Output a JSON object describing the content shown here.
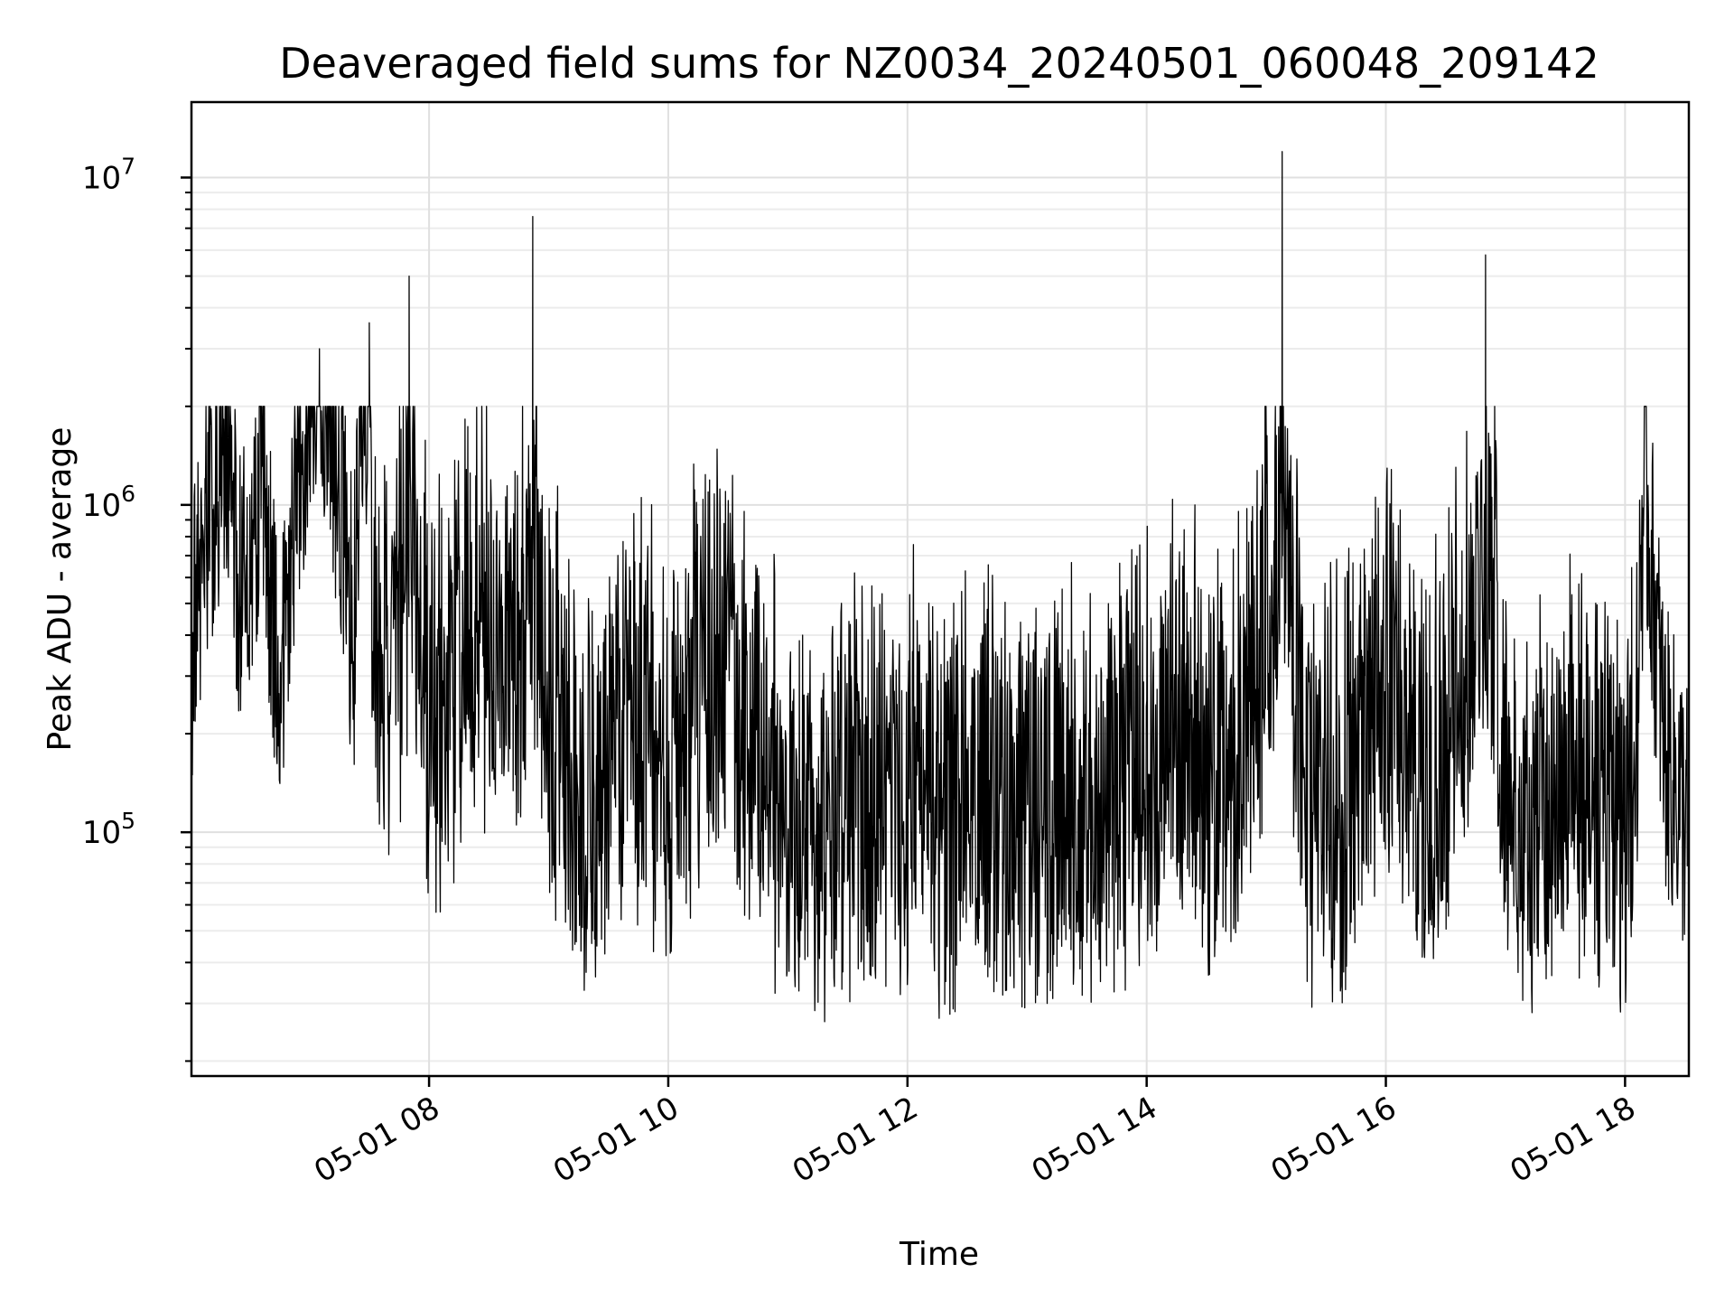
{
  "chart_data": {
    "type": "line",
    "title": "Deaveraged field sums for NZ0034_20240501_060048_209142",
    "xlabel": "Time",
    "ylabel": "Peak ADU - average",
    "x_range": [
      "2024-05-01 06:00:48",
      "2024-05-01 18:32:00"
    ],
    "yscale": "log",
    "ylim": [
      18000,
      17000000
    ],
    "grid": true,
    "line_color": "#000000",
    "x_ticks": [
      {
        "value": "2024-05-01 08:00",
        "label": "05-01 08"
      },
      {
        "value": "2024-05-01 10:00",
        "label": "05-01 10"
      },
      {
        "value": "2024-05-01 12:00",
        "label": "05-01 12"
      },
      {
        "value": "2024-05-01 14:00",
        "label": "05-01 14"
      },
      {
        "value": "2024-05-01 16:00",
        "label": "05-01 16"
      },
      {
        "value": "2024-05-01 18:00",
        "label": "05-01 18"
      }
    ],
    "y_ticks": [
      {
        "value": 100000,
        "base": "10",
        "exp": "5"
      },
      {
        "value": 1000000,
        "base": "10",
        "exp": "6"
      },
      {
        "value": 10000000,
        "base": "10",
        "exp": "7"
      }
    ],
    "series": [
      {
        "x": [
          "2024-05-01 06:01",
          "2024-05-01 06:05",
          "2024-05-01 06:10",
          "2024-05-01 06:18",
          "2024-05-01 06:25",
          "2024-05-01 06:35",
          "2024-05-01 06:45",
          "2024-05-01 06:55",
          "2024-05-01 07:05",
          "2024-05-01 07:15",
          "2024-05-01 07:22",
          "2024-05-01 07:30",
          "2024-05-01 07:40",
          "2024-05-01 07:50",
          "2024-05-01 08:00",
          "2024-05-01 08:15",
          "2024-05-01 08:30",
          "2024-05-01 08:45",
          "2024-05-01 08:52",
          "2024-05-01 09:00",
          "2024-05-01 09:20",
          "2024-05-01 09:40",
          "2024-05-01 10:00",
          "2024-05-01 10:20",
          "2024-05-01 10:40",
          "2024-05-01 11:00",
          "2024-05-01 11:20",
          "2024-05-01 11:40",
          "2024-05-01 12:00",
          "2024-05-01 12:20",
          "2024-05-01 12:40",
          "2024-05-01 13:00",
          "2024-05-01 13:20",
          "2024-05-01 13:40",
          "2024-05-01 14:00",
          "2024-05-01 14:20",
          "2024-05-01 14:40",
          "2024-05-01 15:00",
          "2024-05-01 15:08",
          "2024-05-01 15:20",
          "2024-05-01 15:40",
          "2024-05-01 16:00",
          "2024-05-01 16:20",
          "2024-05-01 16:40",
          "2024-05-01 16:50",
          "2024-05-01 17:00",
          "2024-05-01 17:20",
          "2024-05-01 17:40",
          "2024-05-01 18:00",
          "2024-05-01 18:10",
          "2024-05-01 18:20",
          "2024-05-01 18:31"
        ],
        "y": [
          400000,
          600000,
          900000,
          1900000,
          500000,
          1200000,
          300000,
          1400000,
          3000000,
          1100000,
          400000,
          3600000,
          300000,
          5000000,
          400000,
          600000,
          1300000,
          1200000,
          7600000,
          300000,
          100000,
          400000,
          150000,
          800000,
          200000,
          60000,
          70000,
          90000,
          100000,
          70000,
          80000,
          70000,
          90000,
          80000,
          150000,
          200000,
          90000,
          1500000,
          12000000,
          100000,
          80000,
          700000,
          90000,
          800000,
          5800000,
          100000,
          70000,
          100000,
          80000,
          1200000,
          180000,
          110000
        ]
      }
    ]
  }
}
